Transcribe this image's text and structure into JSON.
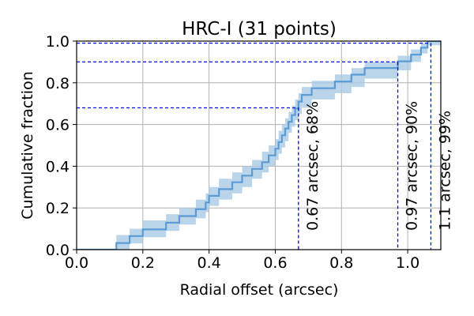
{
  "chart_data": {
    "type": "line",
    "title": "HRC-I (31 points)",
    "xlabel": "Radial offset (arcsec)",
    "ylabel": "Cumulative fraction",
    "xlim": [
      0.0,
      1.1
    ],
    "ylim": [
      0.0,
      1.0
    ],
    "x_ticks": [
      0.0,
      0.2,
      0.4,
      0.6,
      0.8,
      1.0
    ],
    "x_tick_labels": [
      "0.0",
      "0.2",
      "0.4",
      "0.6",
      "0.8",
      "1.0"
    ],
    "y_ticks": [
      0.0,
      0.2,
      0.4,
      0.6,
      0.8,
      1.0
    ],
    "y_tick_labels": [
      "0.0",
      "0.2",
      "0.4",
      "0.6",
      "0.8",
      "1.0"
    ],
    "grid": true,
    "line_color": "#5b9bd5",
    "band_color": "#a9cbe4",
    "marker_color": "#0000ff",
    "series": [
      {
        "x": [
          0.0,
          0.12,
          0.16,
          0.2,
          0.27,
          0.31,
          0.36,
          0.39,
          0.4,
          0.43,
          0.47,
          0.5,
          0.53,
          0.56,
          0.58,
          0.6,
          0.61,
          0.62,
          0.63,
          0.64,
          0.65,
          0.66,
          0.67,
          0.68,
          0.71,
          0.78,
          0.83,
          0.87,
          0.97,
          1.01,
          1.04,
          1.06,
          1.07
        ],
        "y": [
          0.0,
          0.032,
          0.065,
          0.097,
          0.129,
          0.161,
          0.194,
          0.226,
          0.258,
          0.29,
          0.323,
          0.355,
          0.387,
          0.419,
          0.452,
          0.484,
          0.516,
          0.548,
          0.581,
          0.613,
          0.645,
          0.677,
          0.71,
          0.742,
          0.774,
          0.806,
          0.839,
          0.871,
          0.903,
          0.935,
          0.968,
          1.0,
          1.0
        ],
        "band_lo": [
          0.0,
          0.0,
          0.03,
          0.06,
          0.09,
          0.12,
          0.15,
          0.18,
          0.21,
          0.24,
          0.27,
          0.3,
          0.34,
          0.37,
          0.4,
          0.43,
          0.46,
          0.49,
          0.52,
          0.56,
          0.59,
          0.62,
          0.65,
          0.68,
          0.72,
          0.75,
          0.78,
          0.82,
          0.86,
          0.9,
          0.94,
          0.98,
          0.98
        ],
        "band_hi": [
          0.0,
          0.07,
          0.1,
          0.14,
          0.17,
          0.2,
          0.24,
          0.27,
          0.3,
          0.34,
          0.37,
          0.4,
          0.43,
          0.47,
          0.5,
          0.53,
          0.57,
          0.6,
          0.63,
          0.66,
          0.69,
          0.72,
          0.75,
          0.78,
          0.81,
          0.84,
          0.87,
          0.9,
          0.93,
          0.96,
          0.99,
          1.0,
          1.0
        ]
      }
    ],
    "markers": [
      {
        "radius": 0.67,
        "fraction": 0.68,
        "label": "0.67 arcsec, 68%"
      },
      {
        "radius": 0.97,
        "fraction": 0.9,
        "label": "0.97 arcsec, 90%"
      },
      {
        "radius": 1.07,
        "fraction": 0.99,
        "label": "1.1 arcsec, 99%"
      }
    ]
  }
}
